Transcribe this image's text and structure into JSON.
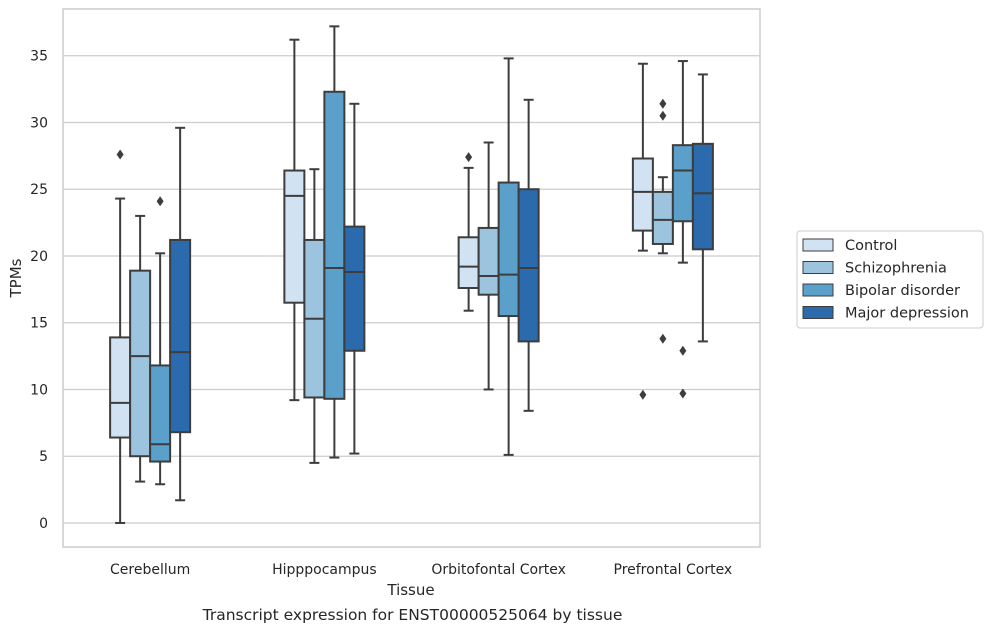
{
  "caption": "Transcript expression for ENST00000525064 by tissue",
  "chart_data": {
    "type": "box",
    "xlabel": "Tissue",
    "ylabel": "TPMs",
    "ylim": [
      -1.8,
      38.5
    ],
    "yticks": [
      0,
      5,
      10,
      15,
      20,
      25,
      30,
      35
    ],
    "grid": "horizontal",
    "legend_position": "right",
    "categories": [
      "Cerebellum",
      "Hipppocampus",
      "Orbitofontal Cortex",
      "Prefrontal Cortex"
    ],
    "series": [
      {
        "name": "Control",
        "color": "#d1e2f2",
        "boxes": [
          {
            "whisker_low": 0.0,
            "q1": 6.4,
            "median": 9.0,
            "q3": 13.9,
            "whisker_high": 24.3,
            "outliers": [
              27.6
            ]
          },
          {
            "whisker_low": 9.2,
            "q1": 16.5,
            "median": 24.5,
            "q3": 26.4,
            "whisker_high": 36.2,
            "outliers": []
          },
          {
            "whisker_low": 15.9,
            "q1": 17.6,
            "median": 19.2,
            "q3": 21.4,
            "whisker_high": 26.6,
            "outliers": [
              27.4
            ]
          },
          {
            "whisker_low": 20.4,
            "q1": 21.9,
            "median": 24.8,
            "q3": 27.3,
            "whisker_high": 34.4,
            "outliers": [
              9.6
            ]
          }
        ]
      },
      {
        "name": "Schizophrenia",
        "color": "#9dc4df",
        "boxes": [
          {
            "whisker_low": 3.1,
            "q1": 5.0,
            "median": 12.5,
            "q3": 18.9,
            "whisker_high": 23.0,
            "outliers": []
          },
          {
            "whisker_low": 4.5,
            "q1": 9.4,
            "median": 15.3,
            "q3": 21.2,
            "whisker_high": 26.5,
            "outliers": []
          },
          {
            "whisker_low": 10.0,
            "q1": 17.1,
            "median": 18.5,
            "q3": 22.1,
            "whisker_high": 28.5,
            "outliers": []
          },
          {
            "whisker_low": 20.2,
            "q1": 20.9,
            "median": 22.7,
            "q3": 24.8,
            "whisker_high": 25.9,
            "outliers": [
              30.5,
              31.4,
              13.8
            ]
          }
        ]
      },
      {
        "name": "Bipolar disorder",
        "color": "#5b9fcb",
        "boxes": [
          {
            "whisker_low": 2.9,
            "q1": 4.6,
            "median": 5.9,
            "q3": 11.8,
            "whisker_high": 20.2,
            "outliers": [
              24.1
            ]
          },
          {
            "whisker_low": 4.9,
            "q1": 9.3,
            "median": 19.1,
            "q3": 32.3,
            "whisker_high": 37.2,
            "outliers": []
          },
          {
            "whisker_low": 5.1,
            "q1": 15.5,
            "median": 18.6,
            "q3": 25.5,
            "whisker_high": 34.8,
            "outliers": []
          },
          {
            "whisker_low": 19.5,
            "q1": 22.6,
            "median": 26.4,
            "q3": 28.3,
            "whisker_high": 34.6,
            "outliers": [
              12.9,
              9.7
            ]
          }
        ]
      },
      {
        "name": "Major depression",
        "color": "#2b6aac",
        "boxes": [
          {
            "whisker_low": 1.7,
            "q1": 6.8,
            "median": 12.8,
            "q3": 21.2,
            "whisker_high": 29.6,
            "outliers": []
          },
          {
            "whisker_low": 5.2,
            "q1": 12.9,
            "median": 18.8,
            "q3": 22.2,
            "whisker_high": 31.4,
            "outliers": []
          },
          {
            "whisker_low": 8.4,
            "q1": 13.6,
            "median": 19.1,
            "q3": 25.0,
            "whisker_high": 31.7,
            "outliers": []
          },
          {
            "whisker_low": 13.6,
            "q1": 20.5,
            "median": 24.7,
            "q3": 28.4,
            "whisker_high": 33.6,
            "outliers": []
          }
        ]
      }
    ]
  }
}
